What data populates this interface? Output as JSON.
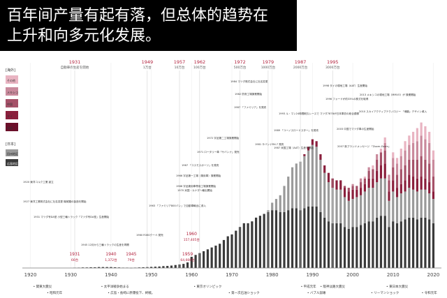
{
  "caption": {
    "line1": "百年间产量有起有落，但总体的趋势在",
    "line2": "上升和向多元化发展。"
  },
  "legend": {
    "overseas_title": "[海外]",
    "overseas_items": [
      "その他",
      "メキシコ",
      "中国",
      "タイ",
      "米国"
    ],
    "domestic_title": "[日本]",
    "domestic_items": [
      "田州地区",
      "広島地区"
    ]
  },
  "colors": {
    "domestic_dark": "#3a3a3a",
    "domestic_light": "#9a9a9a",
    "overseas_1": "#e9b4c2",
    "overseas_2": "#c98a9c",
    "overseas_3": "#a55168",
    "overseas_4": "#8a1f3c",
    "overseas_5": "#6b0f2a",
    "label_red": "#b11e3a"
  },
  "chart_data": {
    "type": "bar",
    "x_ticks": [
      "1920",
      "1930",
      "1940",
      "1950",
      "1960",
      "1970",
      "1980",
      "1990",
      "2000",
      "2010",
      "2020"
    ],
    "x_range": [
      1918,
      2022
    ],
    "y_range": [
      0,
      1.1
    ],
    "series": [
      {
        "key": "domestic_dark",
        "values": [
          [
            1960,
            0.06
          ],
          [
            1961,
            0.07
          ],
          [
            1962,
            0.08
          ],
          [
            1963,
            0.09
          ],
          [
            1964,
            0.1
          ],
          [
            1965,
            0.11
          ],
          [
            1966,
            0.12
          ],
          [
            1967,
            0.13
          ],
          [
            1968,
            0.15
          ],
          [
            1969,
            0.17
          ],
          [
            1970,
            0.18
          ],
          [
            1971,
            0.2
          ],
          [
            1972,
            0.22
          ],
          [
            1973,
            0.24
          ],
          [
            1974,
            0.24
          ],
          [
            1975,
            0.25
          ],
          [
            1976,
            0.27
          ],
          [
            1977,
            0.28
          ],
          [
            1978,
            0.29
          ],
          [
            1979,
            0.3
          ],
          [
            1980,
            0.31
          ],
          [
            1981,
            0.31
          ],
          [
            1982,
            0.3
          ],
          [
            1983,
            0.3
          ],
          [
            1984,
            0.31
          ],
          [
            1985,
            0.32
          ],
          [
            1986,
            0.32
          ],
          [
            1987,
            0.31
          ],
          [
            1988,
            0.32
          ],
          [
            1989,
            0.33
          ],
          [
            1990,
            0.33
          ],
          [
            1991,
            0.33
          ],
          [
            1992,
            0.3
          ],
          [
            1993,
            0.27
          ],
          [
            1994,
            0.25
          ],
          [
            1995,
            0.24
          ],
          [
            1996,
            0.24
          ],
          [
            1997,
            0.24
          ],
          [
            1998,
            0.22
          ],
          [
            1999,
            0.21
          ],
          [
            2000,
            0.22
          ],
          [
            2001,
            0.22
          ],
          [
            2002,
            0.23
          ],
          [
            2003,
            0.24
          ],
          [
            2004,
            0.25
          ],
          [
            2005,
            0.25
          ],
          [
            2006,
            0.27
          ],
          [
            2007,
            0.28
          ],
          [
            2008,
            0.28
          ],
          [
            2009,
            0.22
          ],
          [
            2010,
            0.25
          ],
          [
            2011,
            0.24
          ],
          [
            2012,
            0.25
          ],
          [
            2013,
            0.26
          ],
          [
            2014,
            0.27
          ],
          [
            2015,
            0.27
          ],
          [
            2016,
            0.26
          ],
          [
            2017,
            0.27
          ],
          [
            2018,
            0.27
          ],
          [
            2019,
            0.26
          ],
          [
            2020,
            0.24
          ]
        ]
      },
      {
        "key": "domestic_light",
        "values": [
          [
            1960,
            0.0
          ],
          [
            1961,
            0.0
          ],
          [
            1962,
            0.0
          ],
          [
            1963,
            0.0
          ],
          [
            1964,
            0.0
          ],
          [
            1965,
            0.0
          ],
          [
            1966,
            0.0
          ],
          [
            1967,
            0.0
          ],
          [
            1968,
            0.0
          ],
          [
            1969,
            0.0
          ],
          [
            1970,
            0.0
          ],
          [
            1971,
            0.0
          ],
          [
            1972,
            0.0
          ],
          [
            1973,
            0.0
          ],
          [
            1974,
            0.0
          ],
          [
            1975,
            0.0
          ],
          [
            1976,
            0.0
          ],
          [
            1977,
            0.0
          ],
          [
            1978,
            0.0
          ],
          [
            1979,
            0.01
          ],
          [
            1980,
            0.04
          ],
          [
            1981,
            0.06
          ],
          [
            1982,
            0.09
          ],
          [
            1983,
            0.14
          ],
          [
            1984,
            0.18
          ],
          [
            1985,
            0.22
          ],
          [
            1986,
            0.24
          ],
          [
            1987,
            0.26
          ],
          [
            1988,
            0.28
          ],
          [
            1989,
            0.3
          ],
          [
            1990,
            0.33
          ],
          [
            1991,
            0.32
          ],
          [
            1992,
            0.28
          ],
          [
            1993,
            0.24
          ],
          [
            1994,
            0.21
          ],
          [
            1995,
            0.19
          ],
          [
            1996,
            0.18
          ],
          [
            1997,
            0.18
          ],
          [
            1998,
            0.16
          ],
          [
            1999,
            0.15
          ],
          [
            2000,
            0.15
          ],
          [
            2001,
            0.16
          ],
          [
            2002,
            0.16
          ],
          [
            2003,
            0.17
          ],
          [
            2004,
            0.18
          ],
          [
            2005,
            0.18
          ],
          [
            2006,
            0.19
          ],
          [
            2007,
            0.2
          ],
          [
            2008,
            0.2
          ],
          [
            2009,
            0.14
          ],
          [
            2010,
            0.16
          ],
          [
            2011,
            0.14
          ],
          [
            2012,
            0.15
          ],
          [
            2013,
            0.15
          ],
          [
            2014,
            0.16
          ],
          [
            2015,
            0.15
          ],
          [
            2016,
            0.15
          ],
          [
            2017,
            0.15
          ],
          [
            2018,
            0.15
          ],
          [
            2019,
            0.14
          ],
          [
            2020,
            0.13
          ]
        ]
      },
      {
        "key": "overseas_4",
        "values": [
          [
            1980,
            0.0
          ],
          [
            1985,
            0.0
          ],
          [
            1988,
            0.01
          ],
          [
            1989,
            0.02
          ],
          [
            1990,
            0.03
          ],
          [
            1991,
            0.03
          ],
          [
            1992,
            0.03
          ],
          [
            1993,
            0.04
          ],
          [
            1994,
            0.05
          ],
          [
            1995,
            0.05
          ],
          [
            1996,
            0.05
          ],
          [
            1997,
            0.05
          ],
          [
            1998,
            0.05
          ],
          [
            1999,
            0.05
          ],
          [
            2000,
            0.05
          ],
          [
            2001,
            0.04
          ],
          [
            2002,
            0.04
          ],
          [
            2003,
            0.04
          ],
          [
            2004,
            0.05
          ],
          [
            2005,
            0.05
          ],
          [
            2006,
            0.06
          ],
          [
            2007,
            0.07
          ],
          [
            2008,
            0.08
          ],
          [
            2009,
            0.05
          ],
          [
            2010,
            0.06
          ],
          [
            2011,
            0.05
          ],
          [
            2012,
            0.05
          ],
          [
            2013,
            0.06
          ],
          [
            2014,
            0.07
          ],
          [
            2015,
            0.07
          ],
          [
            2016,
            0.07
          ],
          [
            2017,
            0.07
          ],
          [
            2018,
            0.06
          ],
          [
            2019,
            0.06
          ],
          [
            2020,
            0.04
          ]
        ]
      },
      {
        "key": "overseas_3",
        "values": [
          [
            1998,
            0.01
          ],
          [
            1999,
            0.02
          ],
          [
            2000,
            0.02
          ],
          [
            2001,
            0.02
          ],
          [
            2002,
            0.03
          ],
          [
            2003,
            0.03
          ],
          [
            2004,
            0.04
          ],
          [
            2005,
            0.05
          ],
          [
            2006,
            0.06
          ],
          [
            2007,
            0.07
          ],
          [
            2008,
            0.07
          ],
          [
            2009,
            0.06
          ],
          [
            2010,
            0.07
          ],
          [
            2011,
            0.07
          ],
          [
            2012,
            0.08
          ],
          [
            2013,
            0.08
          ],
          [
            2014,
            0.08
          ],
          [
            2015,
            0.09
          ],
          [
            2016,
            0.1
          ],
          [
            2017,
            0.11
          ],
          [
            2018,
            0.1
          ],
          [
            2019,
            0.1
          ],
          [
            2020,
            0.08
          ]
        ]
      },
      {
        "key": "overseas_2",
        "values": [
          [
            2000,
            0.01
          ],
          [
            2002,
            0.02
          ],
          [
            2004,
            0.02
          ],
          [
            2006,
            0.03
          ],
          [
            2008,
            0.04
          ],
          [
            2009,
            0.03
          ],
          [
            2010,
            0.05
          ],
          [
            2011,
            0.06
          ],
          [
            2012,
            0.07
          ],
          [
            2013,
            0.08
          ],
          [
            2014,
            0.08
          ],
          [
            2015,
            0.09
          ],
          [
            2016,
            0.1
          ],
          [
            2017,
            0.11
          ],
          [
            2018,
            0.11
          ],
          [
            2019,
            0.11
          ],
          [
            2020,
            0.09
          ]
        ]
      },
      {
        "key": "overseas_1",
        "values": [
          [
            2003,
            0.01
          ],
          [
            2005,
            0.02
          ],
          [
            2007,
            0.02
          ],
          [
            2008,
            0.03
          ],
          [
            2010,
            0.03
          ],
          [
            2011,
            0.03
          ],
          [
            2012,
            0.04
          ],
          [
            2013,
            0.05
          ],
          [
            2014,
            0.05
          ],
          [
            2015,
            0.06
          ],
          [
            2016,
            0.07
          ],
          [
            2017,
            0.07
          ],
          [
            2018,
            0.07
          ],
          [
            2019,
            0.06
          ],
          [
            2020,
            0.05
          ]
        ]
      },
      {
        "key": "domestic_dark",
        "values": [
          [
            1931,
            0.002
          ],
          [
            1932,
            0.002
          ],
          [
            1933,
            0.003
          ],
          [
            1934,
            0.003
          ],
          [
            1935,
            0.004
          ],
          [
            1936,
            0.004
          ],
          [
            1937,
            0.005
          ],
          [
            1938,
            0.005
          ],
          [
            1939,
            0.005
          ],
          [
            1940,
            0.005
          ],
          [
            1941,
            0.004
          ],
          [
            1942,
            0.003
          ],
          [
            1943,
            0.002
          ],
          [
            1944,
            0.002
          ],
          [
            1945,
            0.001
          ],
          [
            1946,
            0.002
          ],
          [
            1947,
            0.003
          ],
          [
            1948,
            0.004
          ],
          [
            1949,
            0.005
          ],
          [
            1950,
            0.006
          ],
          [
            1951,
            0.007
          ],
          [
            1952,
            0.008
          ],
          [
            1953,
            0.01
          ],
          [
            1954,
            0.011
          ],
          [
            1955,
            0.013
          ],
          [
            1956,
            0.016
          ],
          [
            1957,
            0.019
          ],
          [
            1958,
            0.022
          ],
          [
            1959,
            0.03
          ]
        ]
      }
    ],
    "milestones_top": [
      {
        "year": "1931",
        "text": "自動車の生産を開始"
      },
      {
        "year": "1949",
        "text": "1万台"
      },
      {
        "year": "1957",
        "text": "10万台"
      },
      {
        "year": "1962",
        "text": "100万台"
      },
      {
        "year": "1972",
        "text": "500万台"
      },
      {
        "year": "1979",
        "text": "1000万台"
      },
      {
        "year": "1987",
        "text": "2000万台"
      },
      {
        "year": "1995",
        "text": "3000万台"
      }
    ],
    "milestones_bottom": [
      {
        "year": "1931",
        "text": "66台"
      },
      {
        "year": "1940",
        "text": "1,372台"
      },
      {
        "year": "1945",
        "text": "79台"
      },
      {
        "year": "1959",
        "text": "64,666台"
      },
      {
        "year": "1960",
        "text": "157,405台"
      }
    ],
    "events": [
      "関東大震災",
      "昭和元年",
      "太平洋戦争始まる",
      "広島・長崎に原爆投下、終戦。",
      "東京オリンピック",
      "第一次石油ショック",
      "平成元年",
      "バブル崩壊",
      "阪神淡路大震災",
      "リーマンショック",
      "東日本大震災",
      "令和元年"
    ],
    "notes": [
      "1920 東洋コルク工業 創立",
      "1927 東洋工業株式会社に社名変更 機械類の製造を開始",
      "1931 マツダ号DA型 小型三輪トラック「マツダ号DA型」生産開始",
      "1945 12月から三輪トラックの生産を再開",
      "1960 R360クーペ 発売",
      "1963 「ファミリア800バン」で自動車輸出に参入",
      "1967 「コスモスポーツ」を発売",
      "1966 宇品第一工場（乗用車）操業開始",
      "1968 宇品乗用車専用工場操業開始",
      "1970 米国・カナダへ輸出開始",
      "1971 ロータリー車「サバンナ」発売",
      "1972 宇品第二工場操業開始",
      "1981 サバンナRX-7 発売",
      "1982 防府工場操業開始",
      "1984 マツダ株式会社に社名変更",
      "1987 「ファミリア」を発売",
      "1989 「ユーノスロードスター」を発売",
      "1987 米国工場（AAT）生産を開始",
      "1993 ル・マン24時間耐久レースで マツダ787Bが日本車初の総合優勝",
      "1998 タイの現地工場（AAT）生産開始",
      "2003 中国でマツダ車の生産開始",
      "2007 新ブランドメッセージ 「Zoom-Zoom」",
      "2010 スカイアクティブテクノロジー 「魂動」デザイン導入",
      "2013 メキシコの現地工場（MMVO）が 操業開始",
      "1996 フォードが約33%の株式を取得"
    ]
  }
}
